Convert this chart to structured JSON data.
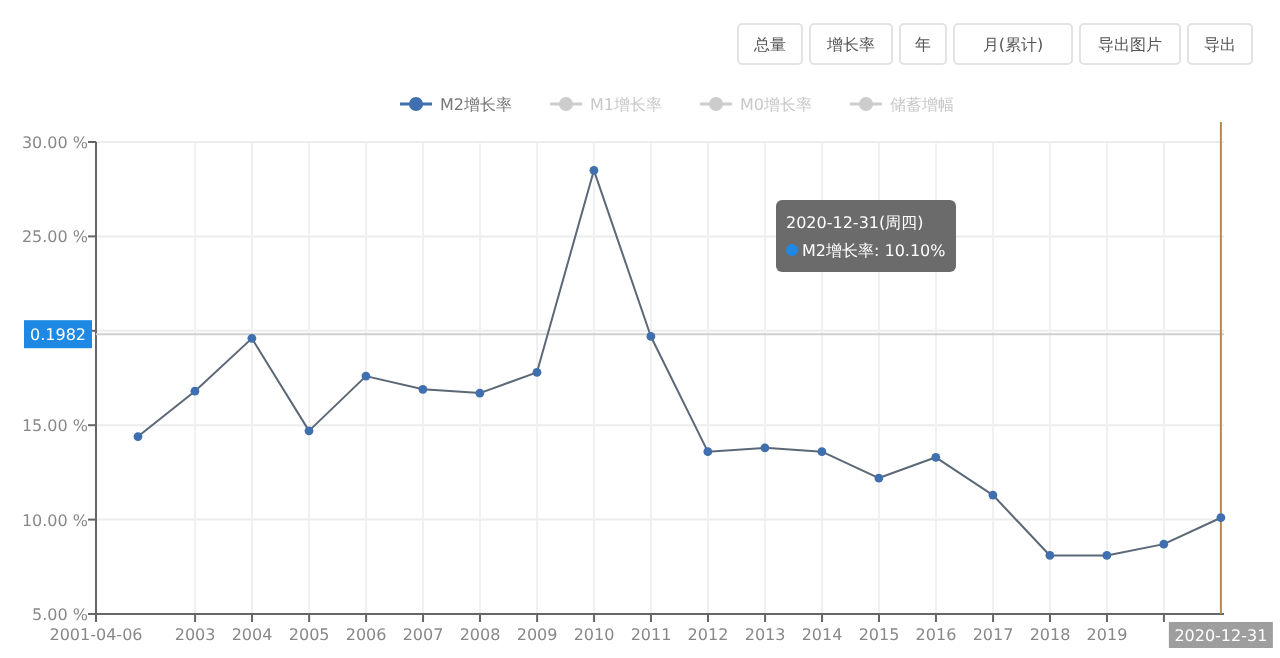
{
  "chart_data": {
    "type": "line",
    "x": [
      "2001-12-31",
      "2002-12-31",
      "2003-12-31",
      "2004-12-31",
      "2005-12-31",
      "2006-12-31",
      "2007-12-31",
      "2008-12-31",
      "2009-12-31",
      "2010-12-31",
      "2011-12-31",
      "2012-12-31",
      "2013-12-31",
      "2014-12-31",
      "2015-12-31",
      "2016-12-31",
      "2017-12-31",
      "2018-12-31",
      "2019-12-31",
      "2020-12-31"
    ],
    "series": [
      {
        "name": "M2增长率",
        "color": "#3f6fae",
        "values": [
          14.4,
          16.8,
          19.6,
          14.7,
          17.6,
          16.9,
          16.7,
          17.8,
          28.5,
          19.7,
          13.6,
          13.8,
          13.6,
          12.2,
          13.3,
          11.3,
          8.1,
          8.1,
          8.7,
          10.1
        ]
      },
      {
        "name": "M1增长率",
        "color": "#cccccc",
        "values": [
          null,
          null,
          null,
          null,
          null,
          null,
          null,
          null,
          null,
          null,
          null,
          null,
          null,
          null,
          null,
          null,
          null,
          null,
          null,
          null
        ]
      },
      {
        "name": "M0增长率",
        "color": "#cccccc",
        "values": [
          null,
          null,
          null,
          null,
          null,
          null,
          null,
          null,
          null,
          null,
          null,
          null,
          null,
          null,
          null,
          null,
          null,
          null,
          null,
          null
        ]
      },
      {
        "name": "储蓄增幅",
        "color": "#cccccc",
        "values": [
          null,
          null,
          null,
          null,
          null,
          null,
          null,
          null,
          null,
          null,
          null,
          null,
          null,
          null,
          null,
          null,
          null,
          null,
          null,
          null
        ]
      }
    ],
    "xlim": [
      "2001-04-06",
      "2021-01-20"
    ],
    "xticks": [
      {
        "value": "2001-04-06",
        "label": "2001-04-06"
      },
      {
        "value": "2003-01-01",
        "label": "2003"
      },
      {
        "value": "2004-01-01",
        "label": "2004"
      },
      {
        "value": "2005-01-01",
        "label": "2005"
      },
      {
        "value": "2006-01-01",
        "label": "2006"
      },
      {
        "value": "2007-01-01",
        "label": "2007"
      },
      {
        "value": "2008-01-01",
        "label": "2008"
      },
      {
        "value": "2009-01-01",
        "label": "2009"
      },
      {
        "value": "2010-01-01",
        "label": "2010"
      },
      {
        "value": "2011-01-01",
        "label": "2011"
      },
      {
        "value": "2012-01-01",
        "label": "2012"
      },
      {
        "value": "2013-01-01",
        "label": "2013"
      },
      {
        "value": "2014-01-01",
        "label": "2014"
      },
      {
        "value": "2015-01-01",
        "label": "2015"
      },
      {
        "value": "2016-01-01",
        "label": "2016"
      },
      {
        "value": "2017-01-01",
        "label": "2017"
      },
      {
        "value": "2018-01-01",
        "label": "2018"
      },
      {
        "value": "2019-01-01",
        "label": "2019"
      },
      {
        "value": "2020-01-01",
        "label": null
      }
    ],
    "ylim": [
      5,
      30
    ],
    "yticks": [
      {
        "value": 5,
        "label": "5.00 %"
      },
      {
        "value": 10,
        "label": "10.00 %"
      },
      {
        "value": 15,
        "label": "15.00 %"
      },
      {
        "value": 20,
        "label": null
      },
      {
        "value": 25,
        "label": "25.00 %"
      },
      {
        "value": 30,
        "label": "30.00 %"
      }
    ],
    "grid": true,
    "legend": "top",
    "marker": "circle",
    "line_style": "solid",
    "ref_lines": [
      {
        "axis": "y",
        "value": 19.82,
        "color": "#cfcfcf"
      },
      {
        "axis": "x",
        "value": "2020-12-31",
        "label": "2020-12-31",
        "color": "#b8894d"
      }
    ],
    "annotations": [
      "总量",
      "增长率",
      "年",
      "月(累计)",
      "导出图片",
      "导出",
      {
        "text": "0.1982",
        "y": 19.82
      },
      "2020-12-31(周四)",
      "M2增长率: 10.10%"
    ]
  }
}
